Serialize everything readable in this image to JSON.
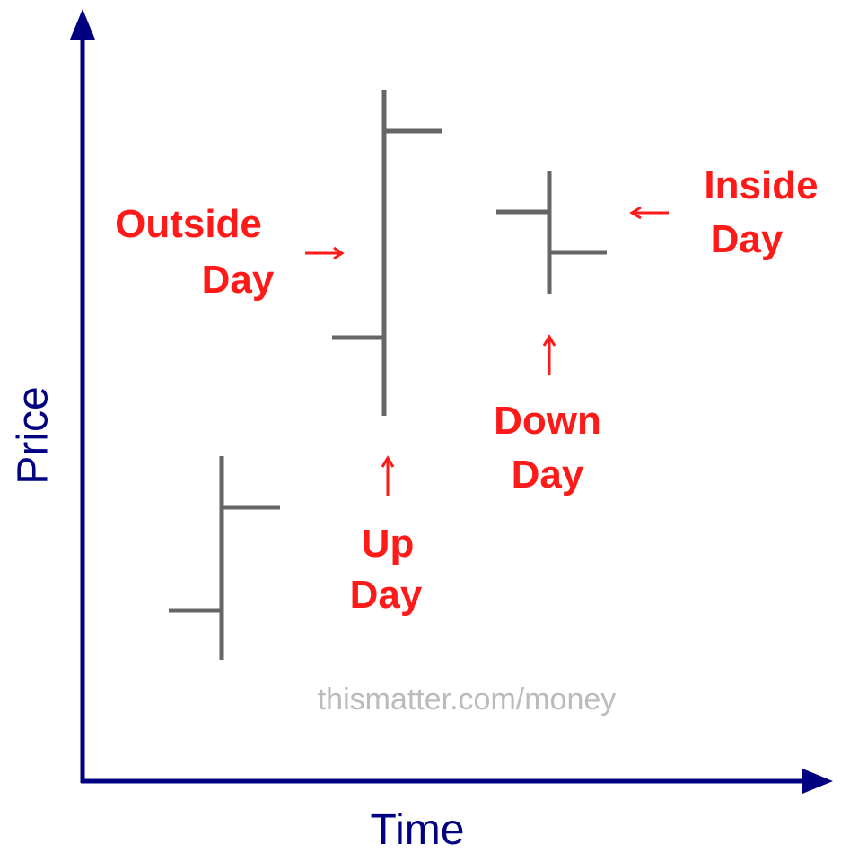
{
  "axes": {
    "y_label": "Price",
    "x_label": "Time"
  },
  "labels": [
    {
      "lines": [
        "Outside",
        "Day"
      ]
    },
    {
      "lines": [
        "Up",
        "Day"
      ]
    },
    {
      "lines": [
        "Down",
        "Day"
      ]
    },
    {
      "lines": [
        "Inside",
        "Day"
      ]
    }
  ],
  "watermark": "thismatter.com/money"
}
